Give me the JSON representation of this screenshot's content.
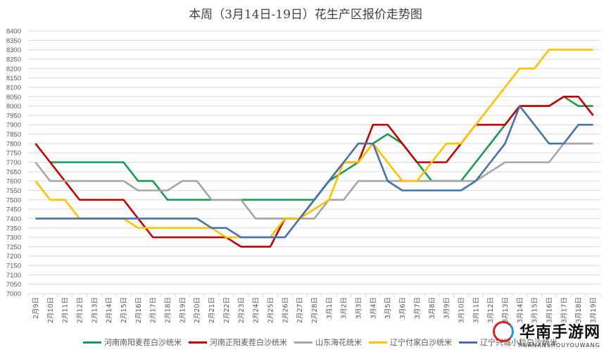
{
  "chart_data": {
    "type": "line",
    "title": "本周（3月14日-19日）花生产区报价走势图",
    "xlabel": "",
    "ylabel": "",
    "ylim": [
      7000,
      8400
    ],
    "ytick_step": 50,
    "grid": true,
    "legend_position": "bottom",
    "categories": [
      "2月9日",
      "2月10日",
      "2月11日",
      "2月12日",
      "2月13日",
      "2月14日",
      "2月15日",
      "2月16日",
      "2月17日",
      "2月18日",
      "2月19日",
      "2月20日",
      "2月21日",
      "2月22日",
      "2月23日",
      "2月24日",
      "2月25日",
      "2月26日",
      "2月27日",
      "2月28日",
      "3月1日",
      "3月2日",
      "3月3日",
      "3月4日",
      "3月5日",
      "3月6日",
      "3月7日",
      "3月8日",
      "3月9日",
      "3月10日",
      "3月11日",
      "3月12日",
      "3月13日",
      "3月14日",
      "3月15日",
      "3月16日",
      "3月17日",
      "3月18日",
      "3月19日"
    ],
    "series": [
      {
        "name": "河南南阳麦茬白沙统米",
        "color": "#1a9850",
        "values": [
          null,
          7700,
          7700,
          7700,
          7700,
          7700,
          7700,
          7600,
          7600,
          7500,
          7500,
          7500,
          7500,
          7500,
          7500,
          7500,
          7500,
          7500,
          7500,
          7500,
          7600,
          7650,
          7700,
          7800,
          7850,
          7800,
          7700,
          7600,
          7600,
          7600,
          7700,
          7800,
          7900,
          8000,
          8000,
          8000,
          8050,
          8000,
          8000
        ]
      },
      {
        "name": "河南正阳麦茬白沙统米",
        "color": "#c00000",
        "values": [
          7800,
          7700,
          7600,
          7500,
          7500,
          7500,
          7500,
          7400,
          7300,
          7300,
          7300,
          7300,
          7300,
          7300,
          7250,
          7250,
          7250,
          7400,
          7400,
          7500,
          7600,
          7700,
          7700,
          7900,
          7900,
          7800,
          7700,
          7700,
          7700,
          7800,
          7900,
          7900,
          7900,
          8000,
          8000,
          8000,
          8050,
          8050,
          7950
        ]
      },
      {
        "name": "山东海花统米",
        "color": "#a5a5a5",
        "values": [
          7700,
          7600,
          7600,
          7600,
          7600,
          7600,
          7600,
          7550,
          7550,
          7550,
          7600,
          7600,
          7500,
          7500,
          7500,
          7400,
          7400,
          7400,
          7400,
          7400,
          7500,
          7500,
          7600,
          7600,
          7600,
          7600,
          7600,
          7600,
          7600,
          7600,
          7600,
          7650,
          7700,
          7700,
          7700,
          7700,
          7800,
          7800,
          7800
        ]
      },
      {
        "name": "辽宁付家白沙统米",
        "color": "#ffc000",
        "values": [
          7600,
          7500,
          7500,
          7400,
          7400,
          7400,
          7400,
          7350,
          7350,
          7350,
          7350,
          7350,
          7350,
          7300,
          7300,
          7300,
          7300,
          7400,
          7400,
          7450,
          7500,
          7700,
          7700,
          7800,
          7700,
          7600,
          7600,
          7700,
          7800,
          7800,
          7900,
          8000,
          8100,
          8200,
          8200,
          8300,
          8300,
          8300,
          8300
        ]
      },
      {
        "name": "辽宁兴城小粒白沙统米",
        "color": "#4472a8",
        "values": [
          7400,
          7400,
          7400,
          7400,
          7400,
          7400,
          7400,
          7400,
          7400,
          7400,
          7400,
          7400,
          7350,
          7350,
          7300,
          7300,
          7300,
          7300,
          7400,
          7500,
          7600,
          7700,
          7800,
          7800,
          7600,
          7550,
          7550,
          7550,
          7550,
          7550,
          7600,
          7700,
          7800,
          8000,
          7900,
          7800,
          7800,
          7900,
          7900
        ]
      }
    ]
  },
  "legend": [
    {
      "label": "河南南阳麦茬白沙统米",
      "color": "#1a9850"
    },
    {
      "label": "河南正阳麦茬白沙统米",
      "color": "#c00000"
    },
    {
      "label": "山东海花统米",
      "color": "#a5a5a5"
    },
    {
      "label": "辽宁付家白沙统米",
      "color": "#ffc000"
    },
    {
      "label": "辽宁兴城小粒白沙统米",
      "color": "#4472a8"
    }
  ],
  "watermark": {
    "name": "华南手游网",
    "sub": "HUANANSHOUYOUWANG"
  }
}
